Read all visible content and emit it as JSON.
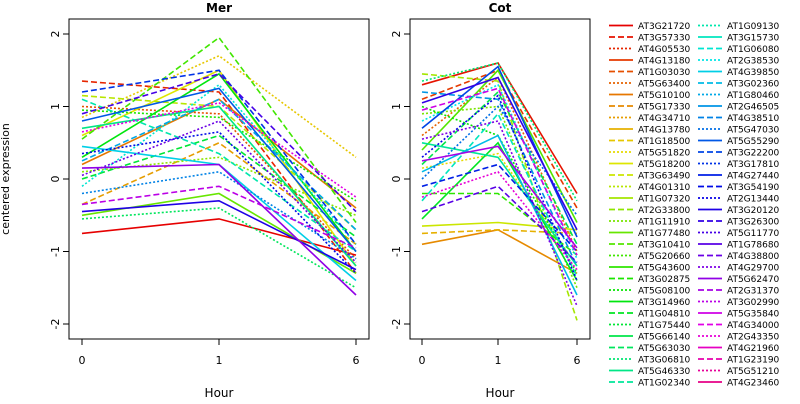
{
  "chart_data": [
    {
      "type": "line",
      "title": "Mer",
      "xlabel": "Hour",
      "ylabel": "centered expression",
      "x": [
        "0",
        "1",
        "6"
      ],
      "ylim": [
        -2,
        2
      ],
      "yticks": [
        -2,
        -1,
        0,
        1,
        2
      ],
      "grid": false,
      "series": [
        {
          "values": [
            -0.75,
            -0.55,
            -1.05
          ]
        },
        {
          "values": [
            1.35,
            1.2,
            -1.3
          ]
        },
        {
          "values": [
            1.0,
            0.9,
            -1.1
          ]
        },
        {
          "values": [
            0.2,
            1.1,
            -0.4
          ]
        },
        {
          "values": [
            -0.35,
            0.5,
            -0.9
          ]
        },
        {
          "values": [
            0.85,
            1.7,
            0.3
          ]
        },
        {
          "values": [
            0.6,
            1.5,
            -1.2
          ]
        },
        {
          "values": [
            1.15,
            1.0,
            -0.7
          ]
        },
        {
          "values": [
            0.1,
            0.3,
            -0.5
          ]
        },
        {
          "values": [
            -0.5,
            -0.2,
            -1.3
          ]
        },
        {
          "values": [
            0.55,
            1.95,
            -0.6
          ]
        },
        {
          "values": [
            0.95,
            0.85,
            -0.3
          ]
        },
        {
          "values": [
            0.3,
            1.45,
            -1.0
          ]
        },
        {
          "values": [
            0.0,
            0.6,
            -0.8
          ]
        },
        {
          "values": [
            -0.55,
            -0.4,
            -1.5
          ]
        },
        {
          "values": [
            0.7,
            1.0,
            -1.2
          ]
        },
        {
          "values": [
            1.1,
            0.35,
            -1.0
          ]
        },
        {
          "values": [
            -0.1,
            1.3,
            -0.9
          ]
        },
        {
          "values": [
            0.45,
            0.2,
            -1.4
          ]
        },
        {
          "values": [
            0.25,
            1.1,
            -0.7
          ]
        },
        {
          "values": [
            -0.2,
            0.1,
            -1.1
          ]
        },
        {
          "values": [
            0.8,
            1.25,
            -1.0
          ]
        },
        {
          "values": [
            1.2,
            1.5,
            -0.9
          ]
        },
        {
          "values": [
            0.35,
            0.65,
            -1.3
          ]
        },
        {
          "values": [
            -0.45,
            -0.3,
            -1.25
          ]
        },
        {
          "values": [
            0.9,
            1.45,
            -0.45
          ]
        },
        {
          "values": [
            0.05,
            0.8,
            -1.15
          ]
        },
        {
          "values": [
            0.15,
            0.2,
            -1.6
          ]
        },
        {
          "values": [
            -0.35,
            -0.1,
            -0.95
          ]
        },
        {
          "values": [
            0.65,
            1.05,
            -0.25
          ]
        }
      ]
    },
    {
      "type": "line",
      "title": "Cot",
      "xlabel": "Hour",
      "ylabel": "",
      "x": [
        "0",
        "1",
        "6"
      ],
      "ylim": [
        -2,
        2
      ],
      "yticks": [
        -2,
        -1,
        0,
        1,
        2
      ],
      "grid": false,
      "series": [
        {
          "values": [
            1.3,
            1.6,
            -0.2
          ]
        },
        {
          "values": [
            1.1,
            1.5,
            -0.4
          ]
        },
        {
          "values": [
            0.6,
            1.4,
            -1.0
          ]
        },
        {
          "values": [
            -0.9,
            -0.7,
            -1.3
          ]
        },
        {
          "values": [
            -0.75,
            -0.7,
            -0.75
          ]
        },
        {
          "values": [
            0.15,
            0.35,
            -1.2
          ]
        },
        {
          "values": [
            -0.65,
            -0.6,
            -0.7
          ]
        },
        {
          "values": [
            1.45,
            1.35,
            -1.95
          ]
        },
        {
          "values": [
            0.9,
            1.0,
            -1.5
          ]
        },
        {
          "values": [
            0.4,
            1.5,
            -0.6
          ]
        },
        {
          "values": [
            -0.2,
            -0.2,
            -1.05
          ]
        },
        {
          "values": [
            1.0,
            0.6,
            -1.3
          ]
        },
        {
          "values": [
            -0.55,
            0.5,
            -1.4
          ]
        },
        {
          "values": [
            0.2,
            1.2,
            -0.9
          ]
        },
        {
          "values": [
            1.35,
            1.6,
            -0.3
          ]
        },
        {
          "values": [
            0.5,
            0.3,
            -1.2
          ]
        },
        {
          "values": [
            -0.3,
            0.9,
            -1.35
          ]
        },
        {
          "values": [
            0.8,
            1.3,
            -1.1
          ]
        },
        {
          "values": [
            0.1,
            0.6,
            -1.6
          ]
        },
        {
          "values": [
            1.2,
            1.1,
            -1.2
          ]
        },
        {
          "values": [
            0.0,
            1.0,
            -0.5
          ]
        },
        {
          "values": [
            0.7,
            1.55,
            -0.8
          ]
        },
        {
          "values": [
            -0.1,
            0.2,
            -1.0
          ]
        },
        {
          "values": [
            0.3,
            1.15,
            -1.4
          ]
        },
        {
          "values": [
            1.05,
            1.4,
            -0.7
          ]
        },
        {
          "values": [
            -0.45,
            -0.1,
            -1.15
          ]
        },
        {
          "values": [
            0.55,
            0.8,
            -1.75
          ]
        },
        {
          "values": [
            0.25,
            0.45,
            -0.95
          ]
        },
        {
          "values": [
            0.95,
            1.25,
            -1.05
          ]
        },
        {
          "values": [
            -0.25,
            0.1,
            -1.25
          ]
        }
      ]
    }
  ],
  "legend": {
    "placement": "right",
    "entries": [
      [
        "AT3G21720",
        "AT1G09130"
      ],
      [
        "AT3G57330",
        "AT3G15730"
      ],
      [
        "AT4G05530",
        "AT1G06080"
      ],
      [
        "AT4G13180",
        "AT2G38530"
      ],
      [
        "AT1G03030",
        "AT4G39850"
      ],
      [
        "AT5G63400",
        "AT3G02360"
      ],
      [
        "AT5G10100",
        "AT1G80460"
      ],
      [
        "AT5G17330",
        "AT2G46505"
      ],
      [
        "AT4G34710",
        "AT4G38510"
      ],
      [
        "AT4G13780",
        "AT5G47030"
      ],
      [
        "AT1G18500",
        "AT5G55290"
      ],
      [
        "AT5G51820",
        "AT3G22200"
      ],
      [
        "AT5G18200",
        "AT3G17810"
      ],
      [
        "AT3G63490",
        "AT4G27440"
      ],
      [
        "AT4G01310",
        "AT3G54190"
      ],
      [
        "AT1G07320",
        "AT2G13440"
      ],
      [
        "AT2G33800",
        "AT3G20120"
      ],
      [
        "AT1G11910",
        "AT3G26300"
      ],
      [
        "AT1G77480",
        "AT5G11770"
      ],
      [
        "AT3G10410",
        "AT1G78680"
      ],
      [
        "AT5G20660",
        "AT4G38800"
      ],
      [
        "AT5G43600",
        "AT4G29700"
      ],
      [
        "AT3G02875",
        "AT5G62470"
      ],
      [
        "AT5G08100",
        "AT2G31370"
      ],
      [
        "AT3G14960",
        "AT3G02990"
      ],
      [
        "AT1G04810",
        "AT5G35840"
      ],
      [
        "AT1G75440",
        "AT4G34000"
      ],
      [
        "AT5G66140",
        "AT2G43350"
      ],
      [
        "AT5G63030",
        "AT4G21960"
      ],
      [
        "AT3G06810",
        "AT1G23190"
      ],
      [
        "AT5G46330",
        "AT5G51210"
      ],
      [
        "AT1G02340",
        "AT4G23460"
      ]
    ]
  }
}
